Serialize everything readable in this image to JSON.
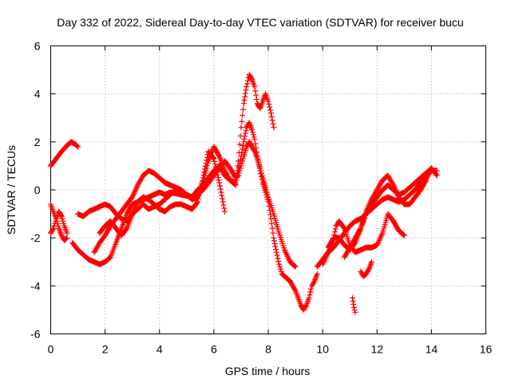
{
  "chart_data": {
    "type": "scatter",
    "title": "Day 332 of 2022, Sidereal Day-to-day VTEC variation (SDTVAR) for receiver bucu",
    "xlabel": "GPS time / hours",
    "ylabel": "SDTVAR / TECUs",
    "xlim": [
      0,
      16
    ],
    "ylim": [
      -6,
      6
    ],
    "x_ticks": [
      "0",
      "2",
      "4",
      "6",
      "8",
      "10",
      "12",
      "14",
      "16"
    ],
    "y_ticks": [
      "-6",
      "-4",
      "-2",
      "0",
      "2",
      "4",
      "6"
    ],
    "grid": true,
    "marker": "+",
    "color": "#ff0000",
    "series": [
      {
        "x": [
          0.0,
          0.2,
          0.4,
          0.6,
          0.75,
          0.9,
          1.0
        ],
        "y": [
          1.0,
          1.3,
          1.6,
          1.85,
          2.0,
          1.9,
          1.8
        ]
      },
      {
        "x": [
          0.0,
          0.1,
          0.2,
          0.3,
          0.4,
          0.5,
          0.6
        ],
        "y": [
          -1.8,
          -1.6,
          -1.2,
          -0.9,
          -1.1,
          -1.5,
          -1.8
        ]
      },
      {
        "x": [
          0.0,
          0.1,
          0.2,
          0.3,
          0.4,
          0.5,
          0.6
        ],
        "y": [
          -0.6,
          -0.9,
          -1.2,
          -1.6,
          -1.9,
          -2.1,
          -2.0
        ]
      },
      {
        "x": [
          0.8,
          1.0,
          1.2,
          1.4,
          1.6,
          1.8,
          2.0,
          2.2,
          2.4,
          2.6,
          2.8,
          3.0,
          3.2,
          3.4,
          3.6,
          3.8,
          4.0,
          4.2,
          4.4,
          4.6,
          4.8,
          5.0,
          5.2,
          5.4,
          5.6,
          5.8,
          6.0,
          6.2,
          6.4,
          6.6,
          6.8,
          6.9,
          7.0,
          7.1,
          7.2,
          7.3,
          7.4,
          7.5,
          7.6,
          7.7,
          7.8,
          7.9,
          8.0,
          8.1,
          8.2,
          8.3,
          8.4,
          8.5,
          8.6,
          8.7,
          8.8,
          8.9,
          9.0,
          9.1,
          9.2,
          9.3,
          9.4,
          9.5,
          9.6,
          9.7,
          9.8
        ],
        "y": [
          -2.2,
          -2.5,
          -2.7,
          -2.9,
          -3.0,
          -3.1,
          -3.0,
          -2.8,
          -2.2,
          -1.6,
          -1.0,
          -0.6,
          -0.5,
          -0.4,
          -0.3,
          -0.2,
          -0.1,
          -0.2,
          -0.1,
          -0.15,
          -0.2,
          -0.25,
          -0.3,
          0.0,
          0.2,
          0.5,
          0.8,
          1.0,
          0.6,
          0.4,
          0.3,
          0.8,
          1.4,
          2.0,
          2.6,
          2.8,
          2.5,
          2.1,
          1.4,
          0.8,
          0.3,
          -0.1,
          -0.5,
          -1.2,
          -2.0,
          -2.6,
          -3.1,
          -3.5,
          -3.6,
          -3.7,
          -3.8,
          -4.0,
          -4.2,
          -4.5,
          -4.8,
          -5.0,
          -4.8,
          -4.5,
          -4.0,
          -3.8,
          -3.5
        ]
      },
      {
        "x": [
          1.0,
          1.2,
          1.4,
          1.6,
          1.8,
          2.0,
          2.2,
          2.4,
          2.6,
          2.8,
          3.0,
          3.2,
          3.4,
          3.6,
          3.8,
          4.0,
          4.2,
          4.4,
          4.6,
          4.8,
          5.0,
          5.2,
          5.4,
          5.6,
          5.8,
          6.0,
          6.2,
          6.4,
          6.6,
          6.8,
          6.9,
          7.0,
          7.1,
          7.2,
          7.3,
          7.4,
          7.5,
          7.6,
          7.7,
          7.8,
          7.9,
          8.0,
          8.2,
          8.4,
          8.6,
          8.8,
          9.0
        ],
        "y": [
          -1.0,
          -1.1,
          -0.9,
          -0.8,
          -0.7,
          -0.6,
          -0.7,
          -1.0,
          -1.2,
          -1.3,
          -1.0,
          -0.8,
          -0.6,
          -0.8,
          -0.7,
          -0.6,
          -0.4,
          -0.2,
          0.0,
          -0.1,
          -0.2,
          -0.3,
          -0.2,
          0.0,
          0.3,
          0.6,
          0.9,
          1.2,
          0.9,
          0.5,
          0.6,
          1.0,
          1.4,
          1.8,
          2.0,
          1.8,
          1.6,
          1.3,
          0.9,
          0.5,
          0.1,
          -0.3,
          -1.0,
          -1.8,
          -2.5,
          -3.0,
          -3.2
        ]
      },
      {
        "x": [
          1.6,
          1.8,
          2.0,
          2.2,
          2.4,
          2.6,
          2.8,
          3.0,
          3.2,
          3.4,
          3.6,
          3.8,
          4.0,
          4.2,
          4.4,
          4.6,
          4.8,
          5.0,
          5.2,
          5.4,
          5.6,
          5.8,
          6.0,
          6.2,
          6.4,
          6.6,
          6.8,
          6.9,
          7.0,
          7.1,
          7.2,
          7.3,
          7.4,
          7.5,
          7.6,
          7.7,
          7.8,
          7.9,
          8.0,
          8.1,
          8.2
        ],
        "y": [
          -2.6,
          -2.2,
          -1.9,
          -1.5,
          -1.2,
          -0.9,
          -0.6,
          -0.3,
          0.2,
          0.6,
          0.8,
          0.7,
          0.5,
          0.3,
          0.2,
          0.1,
          0.0,
          -0.2,
          -0.4,
          -0.3,
          0.3,
          1.2,
          1.8,
          1.4,
          0.8,
          0.4,
          0.2,
          1.2,
          2.6,
          3.6,
          4.3,
          4.8,
          4.6,
          4.3,
          3.6,
          3.4,
          3.7,
          4.0,
          3.7,
          3.2,
          2.6
        ]
      },
      {
        "x": [
          1.8,
          2.0,
          2.2,
          2.4,
          2.6,
          2.8,
          3.0,
          3.2,
          3.4,
          3.6,
          3.8,
          4.0,
          4.2,
          4.4,
          4.6,
          4.8,
          5.0,
          5.2,
          5.4,
          5.6,
          5.8,
          6.0,
          6.2,
          6.4
        ],
        "y": [
          -1.8,
          -1.5,
          -1.3,
          -1.6,
          -1.9,
          -1.6,
          -1.0,
          -0.5,
          -0.3,
          -0.4,
          -0.6,
          -0.8,
          -0.9,
          -0.7,
          -0.6,
          -0.6,
          -0.7,
          -0.8,
          -0.5,
          0.5,
          1.6,
          1.3,
          0.3,
          -0.9
        ]
      },
      {
        "x": [
          9.8,
          10.0,
          10.2,
          10.4,
          10.6,
          10.8,
          11.0,
          11.2,
          11.4,
          11.6,
          11.8,
          12.0,
          12.2,
          12.4,
          12.6,
          12.8,
          13.0,
          13.2,
          13.4,
          13.6,
          13.8,
          14.0,
          14.2
        ],
        "y": [
          -3.2,
          -2.9,
          -2.6,
          -2.4,
          -2.1,
          -1.8,
          -1.5,
          -1.3,
          -1.2,
          -1.0,
          -0.8,
          -0.6,
          -0.4,
          -0.3,
          -0.4,
          -0.5,
          -0.4,
          -0.2,
          0.0,
          0.3,
          0.6,
          0.8,
          0.8
        ]
      },
      {
        "x": [
          10.0,
          10.2,
          10.4,
          10.5,
          10.6,
          10.8,
          11.0,
          11.2,
          11.4,
          11.6,
          11.8,
          12.0,
          12.2,
          12.4,
          12.6,
          12.8,
          13.0
        ],
        "y": [
          -3.1,
          -2.6,
          -2.0,
          -1.5,
          -1.3,
          -1.6,
          -2.3,
          -2.6,
          -2.5,
          -2.4,
          -2.4,
          -2.3,
          -1.8,
          -1.0,
          -1.3,
          -1.7,
          -1.9
        ]
      },
      {
        "x": [
          10.2,
          10.4,
          10.6,
          10.8,
          11.0,
          11.2,
          11.4,
          11.6,
          11.8,
          12.0,
          12.2,
          12.4,
          12.6,
          12.8,
          13.0,
          13.2,
          13.4,
          13.6,
          13.8,
          14.0
        ],
        "y": [
          -2.4,
          -2.0,
          -2.0,
          -2.3,
          -2.5,
          -2.2,
          -1.6,
          -0.9,
          -0.4,
          0.0,
          0.4,
          0.6,
          0.2,
          -0.3,
          -0.6,
          -0.6,
          -0.3,
          0.0,
          0.4,
          0.9
        ]
      },
      {
        "x": [
          10.8,
          11.0,
          11.2,
          11.4,
          11.6,
          11.8,
          12.0,
          12.2,
          12.4,
          12.6,
          12.8,
          13.0,
          13.2,
          13.4,
          13.6,
          13.8,
          14.0,
          14.2
        ],
        "y": [
          -2.8,
          -2.4,
          -2.0,
          -1.6,
          -1.0,
          -0.6,
          -0.3,
          0.0,
          0.2,
          0.0,
          -0.2,
          -0.1,
          0.1,
          0.3,
          0.5,
          0.7,
          0.9,
          0.6
        ]
      },
      {
        "x": [
          11.1,
          11.15,
          11.2
        ],
        "y": [
          -4.5,
          -4.9,
          -5.1
        ]
      },
      {
        "x": [
          11.4,
          11.5,
          11.6,
          11.7,
          11.8
        ],
        "y": [
          -3.4,
          -3.6,
          -3.5,
          -3.3,
          -3.0
        ]
      }
    ]
  }
}
